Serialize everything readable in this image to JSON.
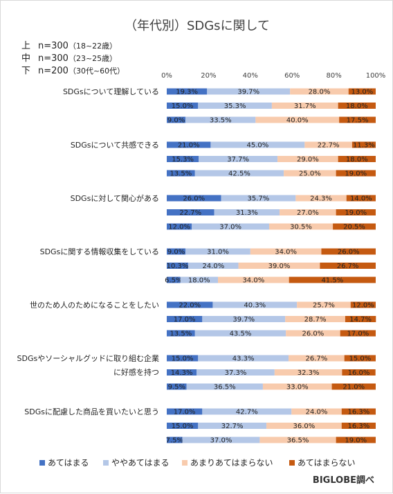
{
  "title": "（年代別）SDGsに関して",
  "groups": [
    {
      "mark": "上",
      "n": "n=300",
      "range": "（18~22歳）"
    },
    {
      "mark": "中",
      "n": "n=300",
      "range": "（23~25歳）"
    },
    {
      "mark": "下",
      "n": "n=200",
      "range": "（30代~60代）"
    }
  ],
  "source": "BIGLOBE調べ",
  "colors": [
    "#4472c4",
    "#b4c7e7",
    "#f8cbad",
    "#c55a11"
  ],
  "chart_data": {
    "type": "bar",
    "orientation": "horizontal",
    "stacked": "percent",
    "xlim": [
      0,
      100
    ],
    "xticks": [
      "0%",
      "20%",
      "40%",
      "60%",
      "80%",
      "100%"
    ],
    "legend_position": "bottom",
    "series_names": [
      "あてはまる",
      "ややあてはまる",
      "あまりあてはまらない",
      "あてはまらない"
    ],
    "categories": [
      {
        "label": [
          "SDGsについて理解している"
        ],
        "rows": [
          [
            19.3,
            39.7,
            28.0,
            13.0
          ],
          [
            15.0,
            35.3,
            31.7,
            18.0
          ],
          [
            9.0,
            33.5,
            40.0,
            17.5
          ]
        ]
      },
      {
        "label": [
          "SDGsについて共感できる"
        ],
        "rows": [
          [
            21.0,
            45.0,
            22.7,
            11.3
          ],
          [
            15.3,
            37.7,
            29.0,
            18.0
          ],
          [
            13.5,
            42.5,
            25.0,
            19.0
          ]
        ]
      },
      {
        "label": [
          "SDGsに対して関心がある"
        ],
        "rows": [
          [
            26.0,
            35.7,
            24.3,
            14.0
          ],
          [
            22.7,
            31.3,
            27.0,
            19.0
          ],
          [
            12.0,
            37.0,
            30.5,
            20.5
          ]
        ]
      },
      {
        "label": [
          "SDGsに関する情報収集をしている"
        ],
        "rows": [
          [
            9.0,
            31.0,
            34.0,
            26.0
          ],
          [
            10.3,
            24.0,
            39.0,
            26.7
          ],
          [
            6.5,
            18.0,
            34.0,
            41.5
          ]
        ]
      },
      {
        "label": [
          "世のため人のためになることをしたい"
        ],
        "rows": [
          [
            22.0,
            40.3,
            25.7,
            12.0
          ],
          [
            17.0,
            39.7,
            28.7,
            14.7
          ],
          [
            13.5,
            43.5,
            26.0,
            17.0
          ]
        ]
      },
      {
        "label": [
          "SDGsやソーシャルグッドに取り組む企業",
          "に好感を持つ"
        ],
        "rows": [
          [
            15.0,
            43.3,
            26.7,
            15.0
          ],
          [
            14.3,
            37.3,
            32.3,
            16.0
          ],
          [
            9.5,
            36.5,
            33.0,
            21.0
          ]
        ]
      },
      {
        "label": [
          "SDGsに配慮した商品を買いたいと思う"
        ],
        "rows": [
          [
            17.0,
            42.7,
            24.0,
            16.3
          ],
          [
            15.0,
            32.7,
            36.0,
            16.3
          ],
          [
            7.5,
            37.0,
            36.5,
            19.0
          ]
        ]
      }
    ]
  }
}
